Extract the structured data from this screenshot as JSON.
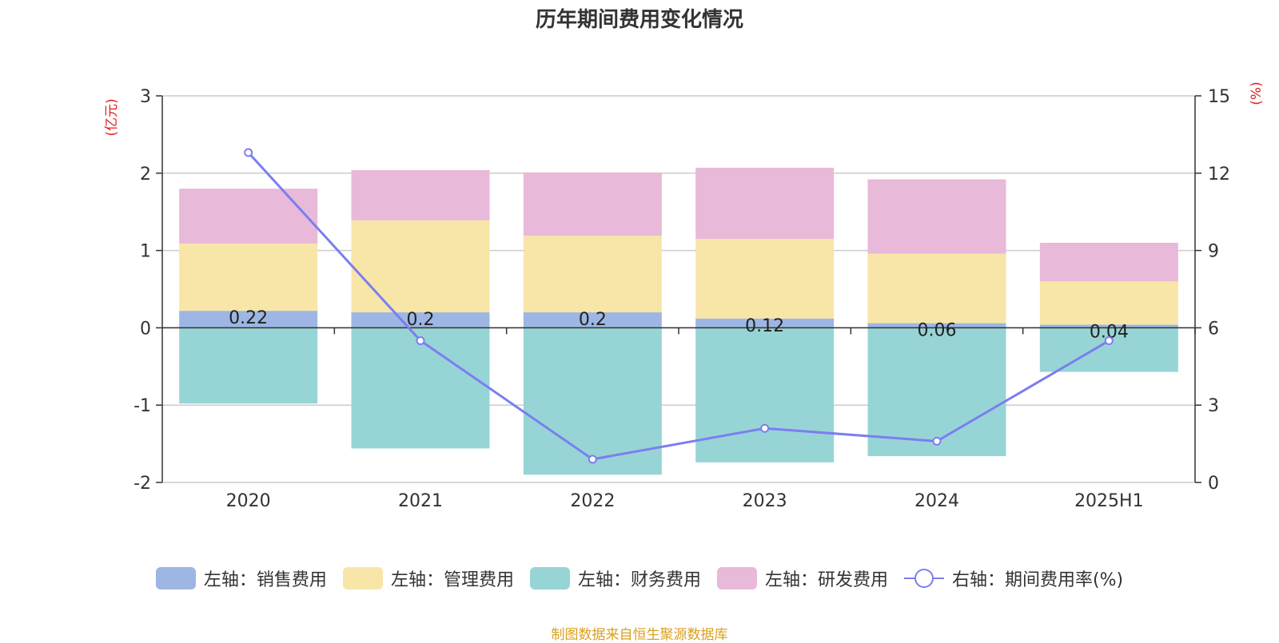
{
  "chart_data": {
    "type": "bar",
    "title": "历年期间费用变化情况",
    "categories": [
      "2020",
      "2021",
      "2022",
      "2023",
      "2024",
      "2025H1"
    ],
    "y_left": {
      "label": "(亿元)",
      "ylim": [
        -2,
        3
      ],
      "ticks": [
        "3",
        "2",
        "1",
        "0",
        "-1",
        "-2"
      ]
    },
    "y_right": {
      "label": "(%)",
      "ylim": [
        0,
        15
      ],
      "ticks": [
        "15",
        "12",
        "9",
        "6",
        "3",
        "0"
      ]
    },
    "series": [
      {
        "name": "左轴：销售费用",
        "kind": "bar",
        "axis": "left",
        "color": "#9db6e3",
        "values": [
          0.22,
          0.2,
          0.2,
          0.12,
          0.06,
          0.04
        ],
        "labels": [
          "0.22",
          "0.2",
          "0.2",
          "0.12",
          "0.06",
          "0.04"
        ]
      },
      {
        "name": "左轴：管理费用",
        "kind": "bar",
        "axis": "left",
        "color": "#f8e6a8",
        "values": [
          0.87,
          1.19,
          0.99,
          1.03,
          0.9,
          0.56
        ]
      },
      {
        "name": "左轴：财务费用",
        "kind": "bar",
        "axis": "left",
        "color": "#97d4d6",
        "values": [
          -0.98,
          -1.56,
          -1.9,
          -1.74,
          -1.66,
          -0.57
        ]
      },
      {
        "name": "左轴：研发费用",
        "kind": "bar",
        "axis": "left",
        "color": "#e8b9d9",
        "values": [
          0.71,
          0.65,
          0.82,
          0.92,
          0.96,
          0.5
        ]
      },
      {
        "name": "右轴：期间费用率(%)",
        "kind": "line",
        "axis": "right",
        "color": "#7b7ef0",
        "values": [
          12.8,
          5.5,
          0.9,
          2.1,
          1.6,
          5.5
        ]
      }
    ],
    "grid": true,
    "legend": "bottom"
  },
  "source_note": "制图数据来自恒生聚源数据库"
}
